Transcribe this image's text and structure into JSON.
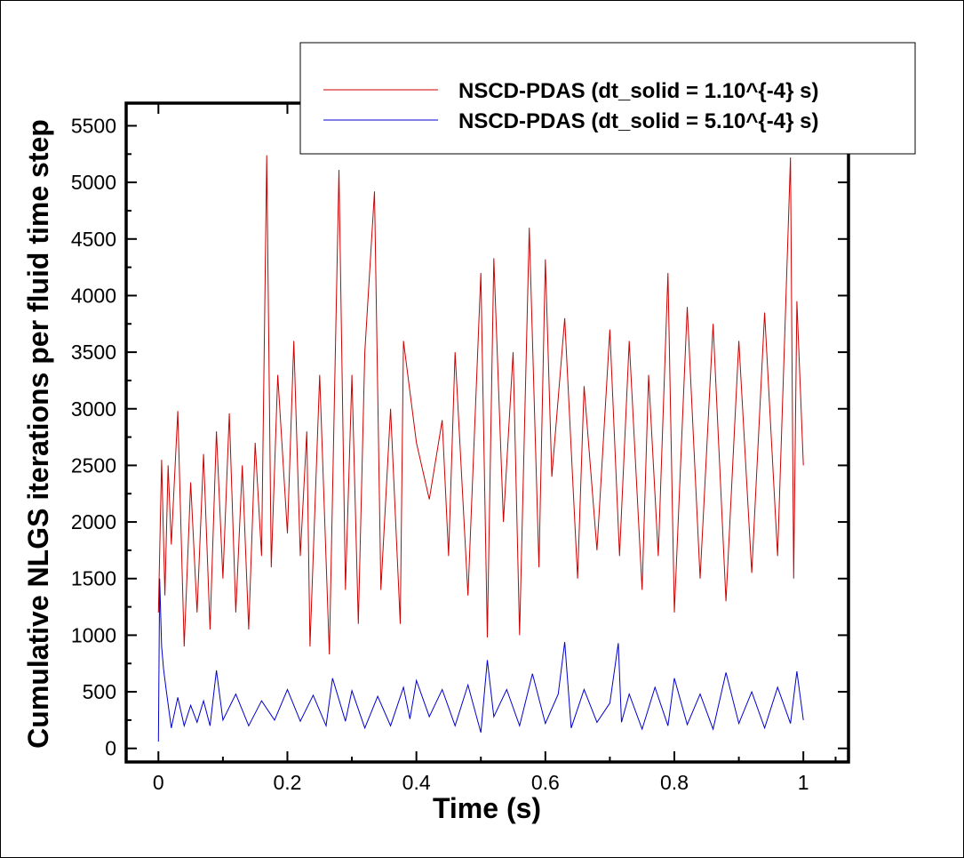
{
  "chart_data": {
    "type": "line",
    "title": "",
    "xlabel": "Time (s)",
    "ylabel": "Cumulative NLGS iterations per fluid time step",
    "xlim": [
      -0.05,
      1.07
    ],
    "ylim": [
      -120,
      5700
    ],
    "xticks": [
      0,
      0.2,
      0.4,
      0.6,
      0.8,
      1
    ],
    "xtick_labels": [
      "0",
      "0.2",
      "0.4",
      "0.6",
      "0.8",
      "1"
    ],
    "yticks": [
      0,
      500,
      1000,
      1500,
      2000,
      2500,
      3000,
      3500,
      4000,
      4500,
      5000,
      5500
    ],
    "ytick_labels": [
      "0",
      "500",
      "1000",
      "1500",
      "2000",
      "2500",
      "3000",
      "3500",
      "4000",
      "4500",
      "5000",
      "5500"
    ],
    "grid": false,
    "legend": "top-right",
    "series": [
      {
        "name": "NSCD-PDAS (dt_solid = 1.10^{-4} s)",
        "color": "#cc0000",
        "x": [
          0,
          0.005,
          0.01,
          0.015,
          0.02,
          0.03,
          0.04,
          0.05,
          0.06,
          0.07,
          0.08,
          0.09,
          0.1,
          0.11,
          0.12,
          0.13,
          0.14,
          0.15,
          0.16,
          0.168,
          0.175,
          0.185,
          0.2,
          0.21,
          0.22,
          0.23,
          0.235,
          0.25,
          0.265,
          0.28,
          0.29,
          0.3,
          0.31,
          0.32,
          0.335,
          0.345,
          0.36,
          0.375,
          0.38,
          0.4,
          0.42,
          0.44,
          0.45,
          0.46,
          0.48,
          0.5,
          0.51,
          0.52,
          0.535,
          0.55,
          0.56,
          0.575,
          0.59,
          0.6,
          0.61,
          0.63,
          0.65,
          0.66,
          0.68,
          0.7,
          0.715,
          0.73,
          0.75,
          0.76,
          0.775,
          0.79,
          0.8,
          0.82,
          0.84,
          0.86,
          0.88,
          0.9,
          0.92,
          0.94,
          0.96,
          0.98,
          0.985,
          0.99,
          1
        ],
        "y": [
          1200,
          2550,
          1350,
          2500,
          1800,
          2980,
          900,
          2350,
          1200,
          2600,
          1050,
          2800,
          1500,
          2960,
          1200,
          2500,
          1050,
          2700,
          1700,
          5240,
          1600,
          3300,
          1900,
          3600,
          1700,
          2800,
          900,
          3300,
          830,
          5110,
          1400,
          3300,
          1100,
          3500,
          4920,
          1400,
          3000,
          1100,
          3600,
          2700,
          2200,
          2900,
          1700,
          3500,
          1350,
          4200,
          980,
          4330,
          2000,
          3500,
          1000,
          4600,
          1600,
          4320,
          2400,
          3800,
          1500,
          3200,
          1750,
          3700,
          1700,
          3600,
          1400,
          3300,
          1700,
          4200,
          1200,
          3900,
          1500,
          3750,
          1300,
          3600,
          1550,
          3850,
          1700,
          5220,
          1500,
          3950,
          2500
        ]
      },
      {
        "name": "NSCD-PDAS (dt_solid = 5.10^{-4} s)",
        "color": "#0000cc",
        "x": [
          0,
          0.002,
          0.005,
          0.008,
          0.012,
          0.02,
          0.03,
          0.04,
          0.05,
          0.06,
          0.07,
          0.08,
          0.09,
          0.1,
          0.12,
          0.14,
          0.16,
          0.18,
          0.2,
          0.22,
          0.24,
          0.26,
          0.27,
          0.29,
          0.3,
          0.32,
          0.34,
          0.36,
          0.38,
          0.39,
          0.4,
          0.42,
          0.44,
          0.46,
          0.48,
          0.5,
          0.51,
          0.52,
          0.54,
          0.56,
          0.58,
          0.6,
          0.62,
          0.63,
          0.64,
          0.66,
          0.68,
          0.7,
          0.713,
          0.718,
          0.73,
          0.75,
          0.77,
          0.79,
          0.8,
          0.82,
          0.84,
          0.86,
          0.88,
          0.9,
          0.92,
          0.94,
          0.96,
          0.98,
          0.99,
          1
        ],
        "y": [
          60,
          1500,
          900,
          700,
          520,
          180,
          450,
          200,
          380,
          230,
          420,
          200,
          690,
          250,
          480,
          200,
          420,
          250,
          520,
          240,
          470,
          200,
          620,
          240,
          510,
          180,
          460,
          200,
          540,
          260,
          600,
          280,
          520,
          200,
          560,
          140,
          780,
          280,
          520,
          200,
          660,
          220,
          480,
          940,
          180,
          520,
          230,
          400,
          930,
          230,
          480,
          170,
          540,
          200,
          620,
          210,
          480,
          170,
          670,
          220,
          500,
          180,
          540,
          220,
          680,
          250
        ]
      }
    ]
  }
}
